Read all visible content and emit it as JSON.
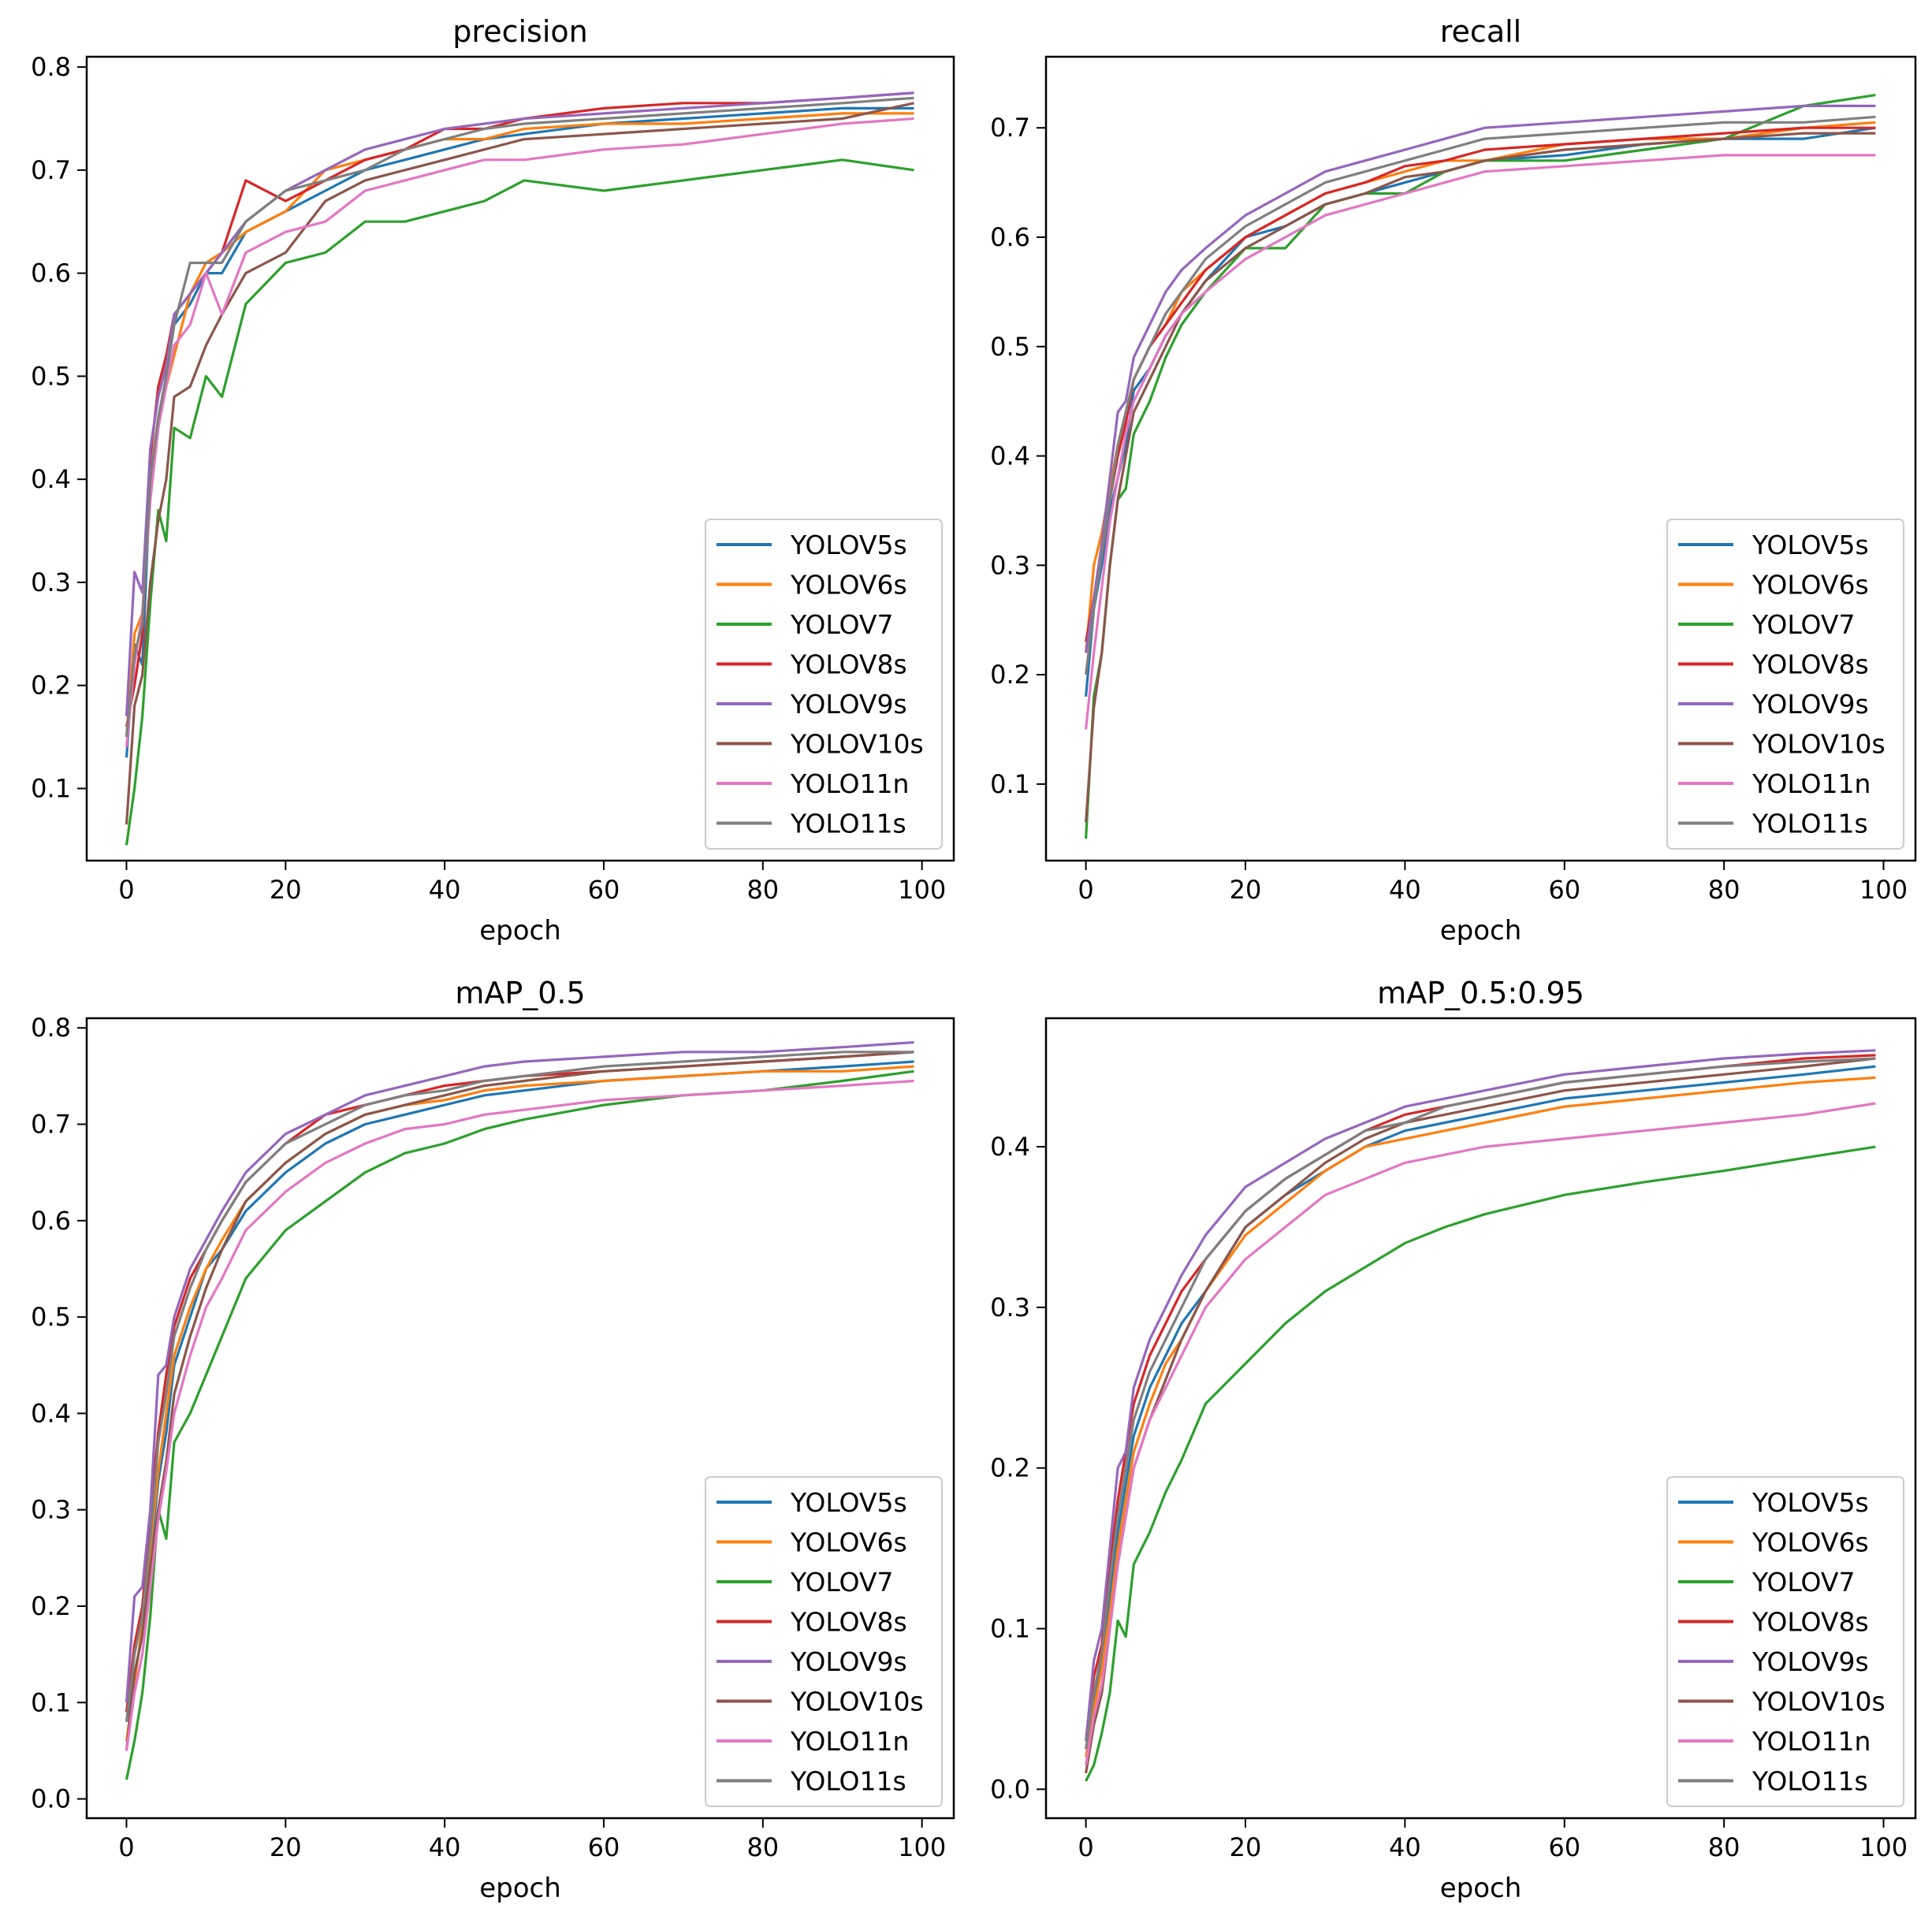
{
  "colors": {
    "YOLOV5s": "#1f77b4",
    "YOLOV6s": "#ff7f0e",
    "YOLOV7": "#2ca02c",
    "YOLOV8s": "#d62728",
    "YOLOV9s": "#9467bd",
    "YOLOV10s": "#8c564b",
    "YOLO11n": "#e377c2",
    "YOLO11s": "#7f7f7f"
  },
  "chart_data": [
    {
      "type": "line",
      "title": "precision",
      "xlabel": "epoch",
      "ylabel": "",
      "xlim": [
        -5,
        104
      ],
      "ylim": [
        0.03,
        0.81
      ],
      "xticks": [
        "0",
        "20",
        "40",
        "60",
        "80",
        "100"
      ],
      "yticks": [
        "0.1",
        "0.2",
        "0.3",
        "0.4",
        "0.5",
        "0.6",
        "0.7",
        "0.8"
      ],
      "grid": false,
      "legend_position": "lower-right",
      "x": [
        0,
        1,
        2,
        3,
        4,
        5,
        6,
        8,
        10,
        12,
        15,
        20,
        25,
        30,
        35,
        40,
        45,
        50,
        60,
        70,
        80,
        90,
        99
      ],
      "series": [
        {
          "name": "YOLOV5s",
          "values": [
            0.13,
            0.24,
            0.22,
            0.4,
            0.45,
            0.5,
            0.55,
            0.57,
            0.6,
            0.6,
            0.64,
            0.66,
            0.68,
            0.7,
            0.71,
            0.72,
            0.73,
            0.735,
            0.745,
            0.75,
            0.755,
            0.76,
            0.76
          ]
        },
        {
          "name": "YOLOV6s",
          "values": [
            0.15,
            0.25,
            0.27,
            0.4,
            0.46,
            0.49,
            0.52,
            0.58,
            0.61,
            0.62,
            0.64,
            0.66,
            0.7,
            0.71,
            0.72,
            0.73,
            0.73,
            0.74,
            0.745,
            0.745,
            0.75,
            0.755,
            0.755
          ]
        },
        {
          "name": "YOLOV7",
          "values": [
            0.045,
            0.1,
            0.17,
            0.28,
            0.37,
            0.34,
            0.45,
            0.44,
            0.5,
            0.48,
            0.57,
            0.61,
            0.62,
            0.65,
            0.65,
            0.66,
            0.67,
            0.69,
            0.68,
            0.69,
            0.7,
            0.71,
            0.7
          ]
        },
        {
          "name": "YOLOV8s",
          "values": [
            0.16,
            0.2,
            0.25,
            0.42,
            0.49,
            0.52,
            0.56,
            0.58,
            0.6,
            0.62,
            0.69,
            0.67,
            0.69,
            0.71,
            0.72,
            0.74,
            0.74,
            0.75,
            0.76,
            0.765,
            0.765,
            0.77,
            0.775
          ]
        },
        {
          "name": "YOLOV9s",
          "values": [
            0.17,
            0.31,
            0.29,
            0.43,
            0.48,
            0.51,
            0.56,
            0.58,
            0.6,
            0.62,
            0.65,
            0.68,
            0.7,
            0.72,
            0.73,
            0.74,
            0.745,
            0.75,
            0.755,
            0.76,
            0.765,
            0.77,
            0.775
          ]
        },
        {
          "name": "YOLOV10s",
          "values": [
            0.065,
            0.18,
            0.21,
            0.3,
            0.36,
            0.4,
            0.48,
            0.49,
            0.53,
            0.56,
            0.6,
            0.62,
            0.67,
            0.69,
            0.7,
            0.71,
            0.72,
            0.73,
            0.735,
            0.74,
            0.745,
            0.75,
            0.765
          ]
        },
        {
          "name": "YOLO11n",
          "values": [
            0.14,
            0.22,
            0.27,
            0.38,
            0.45,
            0.49,
            0.53,
            0.55,
            0.6,
            0.56,
            0.62,
            0.64,
            0.65,
            0.68,
            0.69,
            0.7,
            0.71,
            0.71,
            0.72,
            0.725,
            0.735,
            0.745,
            0.75
          ]
        },
        {
          "name": "YOLO11s",
          "values": [
            0.15,
            0.23,
            0.26,
            0.4,
            0.46,
            0.5,
            0.55,
            0.61,
            0.61,
            0.61,
            0.65,
            0.68,
            0.69,
            0.7,
            0.72,
            0.73,
            0.74,
            0.745,
            0.75,
            0.755,
            0.76,
            0.765,
            0.77
          ]
        }
      ]
    },
    {
      "type": "line",
      "title": "recall",
      "xlabel": "epoch",
      "ylabel": "",
      "xlim": [
        -5,
        104
      ],
      "ylim": [
        0.03,
        0.765
      ],
      "xticks": [
        "0",
        "20",
        "40",
        "60",
        "80",
        "100"
      ],
      "yticks": [
        "0.1",
        "0.2",
        "0.3",
        "0.4",
        "0.5",
        "0.6",
        "0.7"
      ],
      "grid": false,
      "legend_position": "lower-right",
      "x": [
        0,
        1,
        2,
        3,
        4,
        5,
        6,
        8,
        10,
        12,
        15,
        20,
        25,
        30,
        35,
        40,
        45,
        50,
        60,
        70,
        80,
        90,
        99
      ],
      "series": [
        {
          "name": "YOLOV5s",
          "values": [
            0.18,
            0.26,
            0.3,
            0.35,
            0.38,
            0.41,
            0.46,
            0.48,
            0.51,
            0.53,
            0.56,
            0.6,
            0.61,
            0.63,
            0.64,
            0.65,
            0.66,
            0.67,
            0.675,
            0.685,
            0.69,
            0.69,
            0.7
          ]
        },
        {
          "name": "YOLOV6s",
          "values": [
            0.22,
            0.3,
            0.33,
            0.37,
            0.41,
            0.44,
            0.47,
            0.5,
            0.52,
            0.55,
            0.57,
            0.6,
            0.62,
            0.64,
            0.65,
            0.66,
            0.67,
            0.67,
            0.685,
            0.69,
            0.69,
            0.7,
            0.705
          ]
        },
        {
          "name": "YOLOV7",
          "values": [
            0.05,
            0.18,
            0.22,
            0.3,
            0.36,
            0.37,
            0.42,
            0.45,
            0.49,
            0.52,
            0.55,
            0.59,
            0.59,
            0.63,
            0.64,
            0.64,
            0.66,
            0.67,
            0.67,
            0.68,
            0.69,
            0.72,
            0.73
          ]
        },
        {
          "name": "YOLOV8s",
          "values": [
            0.23,
            0.27,
            0.31,
            0.36,
            0.4,
            0.43,
            0.47,
            0.5,
            0.52,
            0.54,
            0.57,
            0.6,
            0.62,
            0.64,
            0.65,
            0.665,
            0.67,
            0.68,
            0.685,
            0.69,
            0.695,
            0.7,
            0.7
          ]
        },
        {
          "name": "YOLOV9s",
          "values": [
            0.22,
            0.27,
            0.32,
            0.38,
            0.44,
            0.45,
            0.49,
            0.52,
            0.55,
            0.57,
            0.59,
            0.62,
            0.64,
            0.66,
            0.67,
            0.68,
            0.69,
            0.7,
            0.705,
            0.71,
            0.715,
            0.72,
            0.72
          ]
        },
        {
          "name": "YOLOV10s",
          "values": [
            0.065,
            0.17,
            0.22,
            0.3,
            0.36,
            0.4,
            0.44,
            0.47,
            0.5,
            0.53,
            0.56,
            0.59,
            0.61,
            0.63,
            0.64,
            0.655,
            0.66,
            0.67,
            0.68,
            0.685,
            0.69,
            0.695,
            0.695
          ]
        },
        {
          "name": "YOLO11n",
          "values": [
            0.15,
            0.22,
            0.28,
            0.34,
            0.38,
            0.42,
            0.45,
            0.48,
            0.51,
            0.53,
            0.55,
            0.58,
            0.6,
            0.62,
            0.63,
            0.64,
            0.65,
            0.66,
            0.665,
            0.67,
            0.675,
            0.675,
            0.675
          ]
        },
        {
          "name": "YOLO11s",
          "values": [
            0.2,
            0.26,
            0.31,
            0.36,
            0.41,
            0.44,
            0.47,
            0.5,
            0.53,
            0.55,
            0.58,
            0.61,
            0.63,
            0.65,
            0.66,
            0.67,
            0.68,
            0.69,
            0.695,
            0.7,
            0.705,
            0.705,
            0.71
          ]
        }
      ]
    },
    {
      "type": "line",
      "title": "mAP_0.5",
      "xlabel": "epoch",
      "ylabel": "",
      "xlim": [
        -5,
        104
      ],
      "ylim": [
        -0.02,
        0.81
      ],
      "xticks": [
        "0",
        "20",
        "40",
        "60",
        "80",
        "100"
      ],
      "yticks": [
        "0.0",
        "0.1",
        "0.2",
        "0.3",
        "0.4",
        "0.5",
        "0.6",
        "0.7",
        "0.8"
      ],
      "grid": false,
      "legend_position": "lower-right",
      "x": [
        0,
        1,
        2,
        3,
        4,
        5,
        6,
        8,
        10,
        12,
        15,
        20,
        25,
        30,
        35,
        40,
        45,
        50,
        60,
        70,
        80,
        90,
        99
      ],
      "series": [
        {
          "name": "YOLOV5s",
          "values": [
            0.08,
            0.13,
            0.17,
            0.25,
            0.33,
            0.38,
            0.45,
            0.5,
            0.55,
            0.57,
            0.61,
            0.65,
            0.68,
            0.7,
            0.71,
            0.72,
            0.73,
            0.735,
            0.745,
            0.75,
            0.755,
            0.76,
            0.765
          ]
        },
        {
          "name": "YOLOV6s",
          "values": [
            0.06,
            0.12,
            0.18,
            0.26,
            0.34,
            0.4,
            0.46,
            0.51,
            0.55,
            0.58,
            0.62,
            0.66,
            0.69,
            0.71,
            0.72,
            0.725,
            0.735,
            0.74,
            0.745,
            0.75,
            0.755,
            0.755,
            0.76
          ]
        },
        {
          "name": "YOLOV7",
          "values": [
            0.02,
            0.06,
            0.11,
            0.19,
            0.3,
            0.27,
            0.37,
            0.4,
            0.44,
            0.48,
            0.54,
            0.59,
            0.62,
            0.65,
            0.67,
            0.68,
            0.695,
            0.705,
            0.72,
            0.73,
            0.735,
            0.745,
            0.755
          ]
        },
        {
          "name": "YOLOV8s",
          "values": [
            0.09,
            0.16,
            0.2,
            0.29,
            0.38,
            0.44,
            0.49,
            0.54,
            0.57,
            0.6,
            0.64,
            0.68,
            0.71,
            0.72,
            0.73,
            0.74,
            0.745,
            0.75,
            0.755,
            0.76,
            0.765,
            0.77,
            0.775
          ]
        },
        {
          "name": "YOLOV9s",
          "values": [
            0.1,
            0.21,
            0.22,
            0.3,
            0.44,
            0.45,
            0.5,
            0.55,
            0.58,
            0.61,
            0.65,
            0.69,
            0.71,
            0.73,
            0.74,
            0.75,
            0.76,
            0.765,
            0.77,
            0.775,
            0.775,
            0.78,
            0.785
          ]
        },
        {
          "name": "YOLOV10s",
          "values": [
            0.05,
            0.13,
            0.17,
            0.24,
            0.3,
            0.35,
            0.42,
            0.48,
            0.53,
            0.57,
            0.62,
            0.66,
            0.69,
            0.71,
            0.72,
            0.73,
            0.74,
            0.745,
            0.755,
            0.76,
            0.765,
            0.77,
            0.775
          ]
        },
        {
          "name": "YOLO11n",
          "values": [
            0.05,
            0.11,
            0.15,
            0.22,
            0.29,
            0.34,
            0.4,
            0.46,
            0.51,
            0.54,
            0.59,
            0.63,
            0.66,
            0.68,
            0.695,
            0.7,
            0.71,
            0.715,
            0.725,
            0.73,
            0.735,
            0.74,
            0.745
          ]
        },
        {
          "name": "YOLO11s",
          "values": [
            0.08,
            0.15,
            0.19,
            0.27,
            0.37,
            0.42,
            0.48,
            0.53,
            0.57,
            0.6,
            0.64,
            0.68,
            0.7,
            0.72,
            0.73,
            0.735,
            0.745,
            0.75,
            0.76,
            0.765,
            0.77,
            0.775,
            0.775
          ]
        }
      ]
    },
    {
      "type": "line",
      "title": "mAP_0.5:0.95",
      "xlabel": "epoch",
      "ylabel": "",
      "xlim": [
        -5,
        104
      ],
      "ylim": [
        -0.018,
        0.48
      ],
      "xticks": [
        "0",
        "20",
        "40",
        "60",
        "80",
        "100"
      ],
      "yticks": [
        "0.0",
        "0.1",
        "0.2",
        "0.3",
        "0.4"
      ],
      "grid": false,
      "legend_position": "lower-right",
      "x": [
        0,
        1,
        2,
        3,
        4,
        5,
        6,
        8,
        10,
        12,
        15,
        20,
        25,
        30,
        35,
        40,
        45,
        50,
        60,
        70,
        80,
        90,
        99
      ],
      "series": [
        {
          "name": "YOLOV5s",
          "values": [
            0.025,
            0.055,
            0.08,
            0.12,
            0.16,
            0.19,
            0.22,
            0.25,
            0.27,
            0.29,
            0.31,
            0.35,
            0.37,
            0.385,
            0.4,
            0.41,
            0.415,
            0.42,
            0.43,
            0.435,
            0.44,
            0.445,
            0.45
          ]
        },
        {
          "name": "YOLOV6s",
          "values": [
            0.02,
            0.05,
            0.075,
            0.11,
            0.15,
            0.18,
            0.21,
            0.24,
            0.265,
            0.28,
            0.31,
            0.345,
            0.365,
            0.385,
            0.4,
            0.405,
            0.41,
            0.415,
            0.425,
            0.43,
            0.435,
            0.44,
            0.443
          ]
        },
        {
          "name": "YOLOV7",
          "values": [
            0.005,
            0.015,
            0.035,
            0.06,
            0.105,
            0.095,
            0.14,
            0.16,
            0.185,
            0.205,
            0.24,
            0.265,
            0.29,
            0.31,
            0.325,
            0.34,
            0.35,
            0.358,
            0.37,
            0.378,
            0.385,
            0.393,
            0.4
          ]
        },
        {
          "name": "YOLOV8s",
          "values": [
            0.03,
            0.07,
            0.09,
            0.14,
            0.18,
            0.21,
            0.24,
            0.27,
            0.29,
            0.31,
            0.33,
            0.36,
            0.38,
            0.395,
            0.41,
            0.42,
            0.425,
            0.43,
            0.44,
            0.445,
            0.45,
            0.455,
            0.457
          ]
        },
        {
          "name": "YOLOV9s",
          "values": [
            0.03,
            0.08,
            0.1,
            0.15,
            0.2,
            0.21,
            0.25,
            0.28,
            0.3,
            0.32,
            0.345,
            0.375,
            0.39,
            0.405,
            0.415,
            0.425,
            0.43,
            0.435,
            0.445,
            0.45,
            0.455,
            0.458,
            0.46
          ]
        },
        {
          "name": "YOLOV10s",
          "values": [
            0.01,
            0.04,
            0.06,
            0.1,
            0.14,
            0.17,
            0.2,
            0.23,
            0.255,
            0.28,
            0.31,
            0.35,
            0.37,
            0.39,
            0.405,
            0.415,
            0.42,
            0.425,
            0.435,
            0.44,
            0.445,
            0.45,
            0.455
          ]
        },
        {
          "name": "YOLO11n",
          "values": [
            0.015,
            0.045,
            0.065,
            0.1,
            0.14,
            0.17,
            0.2,
            0.23,
            0.25,
            0.27,
            0.3,
            0.33,
            0.35,
            0.37,
            0.38,
            0.39,
            0.395,
            0.4,
            0.405,
            0.41,
            0.415,
            0.42,
            0.427
          ]
        },
        {
          "name": "YOLO11s",
          "values": [
            0.025,
            0.06,
            0.085,
            0.13,
            0.17,
            0.2,
            0.23,
            0.26,
            0.28,
            0.3,
            0.33,
            0.36,
            0.38,
            0.395,
            0.41,
            0.415,
            0.425,
            0.43,
            0.44,
            0.445,
            0.45,
            0.453,
            0.455
          ]
        }
      ]
    }
  ]
}
